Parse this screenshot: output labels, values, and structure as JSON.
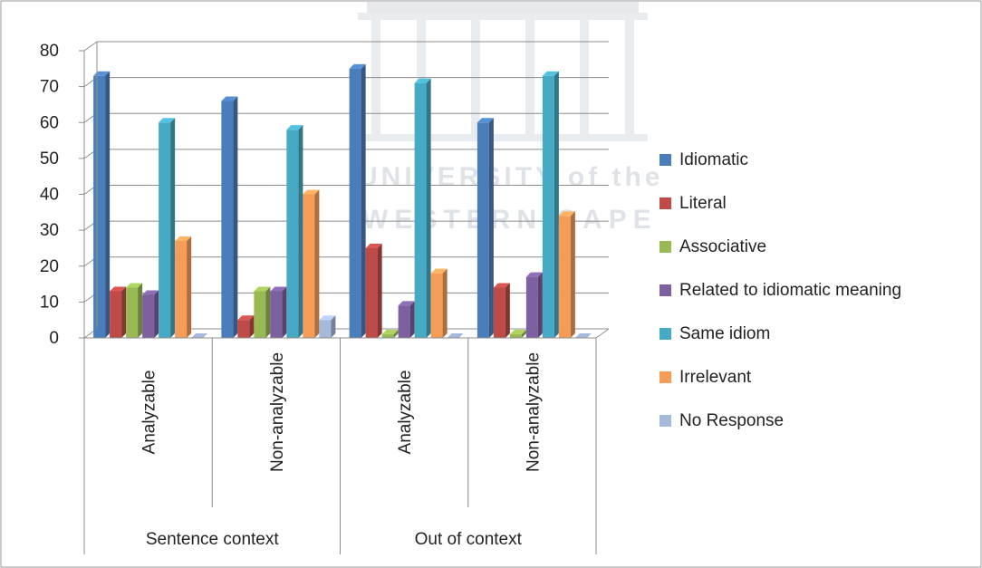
{
  "watermark": {
    "line1": "UNIVERSITY of the",
    "line2": "WESTERN CAPE"
  },
  "chart_data": {
    "type": "bar",
    "title": "",
    "xlabel": "",
    "ylabel": "",
    "ylim": [
      0,
      80
    ],
    "yticks": [
      "0",
      "10",
      "20",
      "30",
      "40",
      "50",
      "60",
      "70",
      "80"
    ],
    "grid": true,
    "legend_position": "right",
    "groups": [
      {
        "label": "Sentence context",
        "categories": [
          "Analyzable",
          "Non-analyzable"
        ]
      },
      {
        "label": "Out of context",
        "categories": [
          "Analyzable",
          "Non-analyzable"
        ]
      }
    ],
    "series": [
      {
        "name": "Idiomatic",
        "color": "#4A7EBB",
        "values": [
          73,
          66,
          75,
          60
        ]
      },
      {
        "name": "Literal",
        "color": "#BE4B48",
        "values": [
          13,
          5,
          25,
          14
        ]
      },
      {
        "name": "Associative",
        "color": "#98B954",
        "values": [
          14,
          13,
          1,
          1
        ]
      },
      {
        "name": "Related to idiomatic meaning",
        "color": "#7D60A0",
        "values": [
          12,
          13,
          9,
          17
        ]
      },
      {
        "name": "Same idiom",
        "color": "#46AAC4",
        "values": [
          60,
          58,
          71,
          73
        ]
      },
      {
        "name": "Irrelevant",
        "color": "#F59D56",
        "values": [
          27,
          40,
          18,
          34
        ]
      },
      {
        "name": "No Response",
        "color": "#A5B9DB",
        "values": [
          0,
          5,
          0,
          0
        ]
      }
    ]
  }
}
